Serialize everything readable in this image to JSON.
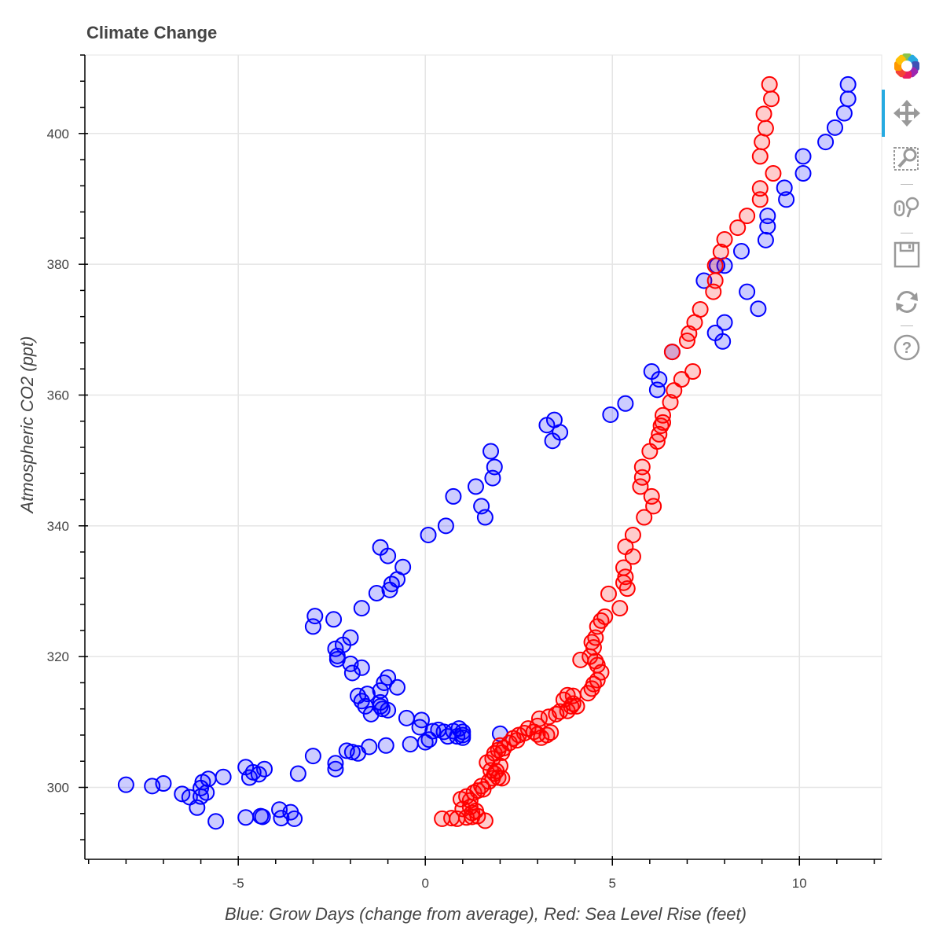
{
  "title": "Climate Change",
  "toolbar": {
    "logo": "bokeh-logo-icon",
    "tools": [
      {
        "name": "pan-tool",
        "icon": "move-arrows-icon",
        "active": true
      },
      {
        "name": "box-zoom-tool",
        "icon": "box-zoom-icon",
        "active": false
      },
      {
        "name": "wheel-zoom-tool",
        "icon": "wheel-zoom-icon",
        "active": false
      },
      {
        "name": "save-tool",
        "icon": "floppy-disk-icon",
        "active": false
      },
      {
        "name": "reset-tool",
        "icon": "reset-arrows-icon",
        "active": false
      },
      {
        "name": "help-tool",
        "icon": "question-mark-icon",
        "active": false
      }
    ],
    "active_color": "#26aae1",
    "icon_color": "#aaaaaa"
  },
  "chart_data": {
    "type": "scatter",
    "title": "Climate Change",
    "xlabel": "Blue: Grow Days (change from average), Red: Sea Level Rise (feet)",
    "ylabel": "Atmospheric CO2 (ppt)",
    "xlim": [
      -9.1,
      12.2
    ],
    "ylim": [
      289,
      412
    ],
    "x_ticks": [
      -5,
      0,
      5,
      10
    ],
    "x_tick_labels": [
      "-5",
      "0",
      "5",
      "10"
    ],
    "y_ticks": [
      300,
      320,
      340,
      360,
      380,
      400
    ],
    "y_tick_labels": [
      "300",
      "320",
      "340",
      "360",
      "380",
      "400"
    ],
    "grid": true,
    "legend": "none",
    "series": [
      {
        "name": "Grow Days",
        "color": "#0000ff",
        "fill": "#0000ff",
        "fill_alpha": 0.2,
        "points": [
          [
            -8.0,
            300.4
          ],
          [
            -7.3,
            300.2
          ],
          [
            -7.0,
            300.6
          ],
          [
            -6.5,
            299.0
          ],
          [
            -6.3,
            298.5
          ],
          [
            -6.1,
            296.9
          ],
          [
            -6.0,
            298.6
          ],
          [
            -6.0,
            299.9
          ],
          [
            -5.95,
            300.8
          ],
          [
            -5.85,
            299.2
          ],
          [
            -5.8,
            301.3
          ],
          [
            -5.6,
            294.8
          ],
          [
            -5.4,
            301.6
          ],
          [
            -4.8,
            303.1
          ],
          [
            -4.7,
            301.5
          ],
          [
            -4.6,
            302.3
          ],
          [
            -4.45,
            302.0
          ],
          [
            -4.3,
            302.8
          ],
          [
            -4.8,
            295.4
          ],
          [
            -4.4,
            295.6
          ],
          [
            -4.35,
            295.5
          ],
          [
            -3.9,
            296.6
          ],
          [
            -3.85,
            295.3
          ],
          [
            -3.6,
            296.2
          ],
          [
            -3.5,
            295.2
          ],
          [
            -3.4,
            302.1
          ],
          [
            -3.0,
            304.8
          ],
          [
            -2.4,
            303.7
          ],
          [
            -2.4,
            302.8
          ],
          [
            -2.1,
            305.6
          ],
          [
            -1.95,
            305.4
          ],
          [
            -1.8,
            305.2
          ],
          [
            -1.5,
            306.2
          ],
          [
            -1.05,
            306.4
          ],
          [
            -0.4,
            306.6
          ],
          [
            0.0,
            306.9
          ],
          [
            0.1,
            307.3
          ],
          [
            -0.5,
            310.6
          ],
          [
            -0.1,
            310.3
          ],
          [
            -0.15,
            309.2
          ],
          [
            0.2,
            308.6
          ],
          [
            0.35,
            308.8
          ],
          [
            0.5,
            308.5
          ],
          [
            0.6,
            307.8
          ],
          [
            0.75,
            308.6
          ],
          [
            0.85,
            307.8
          ],
          [
            1.0,
            308.0
          ],
          [
            1.0,
            308.5
          ],
          [
            0.9,
            309.0
          ],
          [
            1.0,
            307.6
          ],
          [
            2.0,
            308.2
          ],
          [
            -1.8,
            314.0
          ],
          [
            -1.55,
            314.3
          ],
          [
            -1.7,
            313.2
          ],
          [
            -1.6,
            312.4
          ],
          [
            -1.45,
            311.2
          ],
          [
            -1.2,
            312.4
          ],
          [
            -1.15,
            312.0
          ],
          [
            -1.0,
            311.8
          ],
          [
            -1.2,
            313.0
          ],
          [
            -1.1,
            316.0
          ],
          [
            -1.0,
            316.8
          ],
          [
            -1.2,
            314.8
          ],
          [
            -0.75,
            315.3
          ],
          [
            -2.0,
            318.9
          ],
          [
            -1.95,
            317.5
          ],
          [
            -1.7,
            318.3
          ],
          [
            -2.4,
            321.2
          ],
          [
            -2.35,
            320.1
          ],
          [
            -2.35,
            319.6
          ],
          [
            -2.2,
            321.8
          ],
          [
            -2.0,
            322.9
          ],
          [
            -3.0,
            324.6
          ],
          [
            -2.95,
            326.2
          ],
          [
            -2.45,
            325.7
          ],
          [
            -1.7,
            327.4
          ],
          [
            -1.3,
            329.7
          ],
          [
            -0.95,
            330.2
          ],
          [
            -0.9,
            331.1
          ],
          [
            -0.75,
            331.8
          ],
          [
            -0.6,
            333.7
          ],
          [
            -1.2,
            336.7
          ],
          [
            -1.0,
            335.4
          ],
          [
            0.08,
            338.6
          ],
          [
            0.55,
            340.0
          ],
          [
            0.75,
            344.5
          ],
          [
            1.35,
            346.0
          ],
          [
            1.5,
            343.0
          ],
          [
            1.6,
            341.3
          ],
          [
            1.75,
            351.4
          ],
          [
            1.8,
            347.3
          ],
          [
            1.85,
            349.0
          ],
          [
            3.25,
            355.4
          ],
          [
            3.45,
            356.2
          ],
          [
            3.4,
            353.0
          ],
          [
            3.6,
            354.3
          ],
          [
            4.95,
            357.0
          ],
          [
            5.35,
            358.7
          ],
          [
            6.05,
            363.6
          ],
          [
            6.2,
            360.8
          ],
          [
            6.25,
            362.4
          ],
          [
            6.6,
            366.6
          ],
          [
            7.45,
            377.5
          ],
          [
            7.75,
            369.5
          ],
          [
            7.95,
            368.2
          ],
          [
            8.0,
            371.1
          ],
          [
            7.8,
            379.8
          ],
          [
            8.0,
            379.8
          ],
          [
            8.45,
            382.0
          ],
          [
            8.6,
            375.8
          ],
          [
            8.9,
            373.2
          ],
          [
            9.1,
            383.7
          ],
          [
            9.15,
            385.8
          ],
          [
            9.15,
            387.4
          ],
          [
            9.65,
            389.9
          ],
          [
            9.6,
            391.7
          ],
          [
            10.1,
            393.9
          ],
          [
            10.1,
            396.5
          ],
          [
            10.7,
            398.7
          ],
          [
            10.95,
            400.9
          ],
          [
            11.2,
            403.1
          ],
          [
            11.3,
            405.3
          ],
          [
            11.3,
            407.5
          ]
        ]
      },
      {
        "name": "Sea Level Rise",
        "color": "#ff0000",
        "fill": "#ff0000",
        "fill_alpha": 0.2,
        "points": [
          [
            0.45,
            295.2
          ],
          [
            0.7,
            295.3
          ],
          [
            0.85,
            295.2
          ],
          [
            1.1,
            295.4
          ],
          [
            1.25,
            295.5
          ],
          [
            1.4,
            295.6
          ],
          [
            1.6,
            294.9
          ],
          [
            1.0,
            296.7
          ],
          [
            1.2,
            297.0
          ],
          [
            1.25,
            296.1
          ],
          [
            1.35,
            296.4
          ],
          [
            0.95,
            298.2
          ],
          [
            1.1,
            298.6
          ],
          [
            1.3,
            299.2
          ],
          [
            1.4,
            299.5
          ],
          [
            1.5,
            300.2
          ],
          [
            1.55,
            299.7
          ],
          [
            1.2,
            298.0
          ],
          [
            1.7,
            300.9
          ],
          [
            1.8,
            301.4
          ],
          [
            1.85,
            302.1
          ],
          [
            1.95,
            301.5
          ],
          [
            2.05,
            301.4
          ],
          [
            1.75,
            302.6
          ],
          [
            1.9,
            302.5
          ],
          [
            1.65,
            303.8
          ],
          [
            1.8,
            304.4
          ],
          [
            2.0,
            303.3
          ],
          [
            1.85,
            305.2
          ],
          [
            1.95,
            305.7
          ],
          [
            2.05,
            305.3
          ],
          [
            2.1,
            306.0
          ],
          [
            2.0,
            306.4
          ],
          [
            2.25,
            306.8
          ],
          [
            2.35,
            307.5
          ],
          [
            2.45,
            307.2
          ],
          [
            2.5,
            308.0
          ],
          [
            2.65,
            308.3
          ],
          [
            2.75,
            309.0
          ],
          [
            2.9,
            308.5
          ],
          [
            3.0,
            308.1
          ],
          [
            3.0,
            309.4
          ],
          [
            3.1,
            307.6
          ],
          [
            3.25,
            308.0
          ],
          [
            3.35,
            308.4
          ],
          [
            3.05,
            310.5
          ],
          [
            3.3,
            310.8
          ],
          [
            3.5,
            311.2
          ],
          [
            3.6,
            311.6
          ],
          [
            3.8,
            311.7
          ],
          [
            3.9,
            312.4
          ],
          [
            3.95,
            312.8
          ],
          [
            4.05,
            312.4
          ],
          [
            3.7,
            313.4
          ],
          [
            3.8,
            314.1
          ],
          [
            3.95,
            314.0
          ],
          [
            4.35,
            314.4
          ],
          [
            4.45,
            315.1
          ],
          [
            4.5,
            315.8
          ],
          [
            4.6,
            316.4
          ],
          [
            4.7,
            317.6
          ],
          [
            4.15,
            319.5
          ],
          [
            4.4,
            320.0
          ],
          [
            4.55,
            319.3
          ],
          [
            4.6,
            318.7
          ],
          [
            4.5,
            321.4
          ],
          [
            4.45,
            322.2
          ],
          [
            4.55,
            322.9
          ],
          [
            4.6,
            324.6
          ],
          [
            4.7,
            325.5
          ],
          [
            4.8,
            326.1
          ],
          [
            4.9,
            329.6
          ],
          [
            5.2,
            327.4
          ],
          [
            5.3,
            331.3
          ],
          [
            5.35,
            332.2
          ],
          [
            5.4,
            330.4
          ],
          [
            5.3,
            333.6
          ],
          [
            5.55,
            335.3
          ],
          [
            5.35,
            336.8
          ],
          [
            5.55,
            338.6
          ],
          [
            5.85,
            341.3
          ],
          [
            5.75,
            346.0
          ],
          [
            5.8,
            347.4
          ],
          [
            5.8,
            349.0
          ],
          [
            6.0,
            351.4
          ],
          [
            6.1,
            343.0
          ],
          [
            6.05,
            344.5
          ],
          [
            6.2,
            352.9
          ],
          [
            6.25,
            354.0
          ],
          [
            6.3,
            355.3
          ],
          [
            6.35,
            355.8
          ],
          [
            6.35,
            356.9
          ],
          [
            6.55,
            358.9
          ],
          [
            6.65,
            360.7
          ],
          [
            6.85,
            362.4
          ],
          [
            7.15,
            363.6
          ],
          [
            6.6,
            366.6
          ],
          [
            7.0,
            368.3
          ],
          [
            7.05,
            369.4
          ],
          [
            7.2,
            371.1
          ],
          [
            7.35,
            373.1
          ],
          [
            7.7,
            375.8
          ],
          [
            7.75,
            377.5
          ],
          [
            7.75,
            379.8
          ],
          [
            7.9,
            381.9
          ],
          [
            8.0,
            383.8
          ],
          [
            8.35,
            385.6
          ],
          [
            8.6,
            387.4
          ],
          [
            8.95,
            389.9
          ],
          [
            8.95,
            391.6
          ],
          [
            9.3,
            393.9
          ],
          [
            8.95,
            396.5
          ],
          [
            9.0,
            398.7
          ],
          [
            9.1,
            400.8
          ],
          [
            9.05,
            403.0
          ],
          [
            9.25,
            405.3
          ],
          [
            9.2,
            407.5
          ]
        ]
      }
    ]
  }
}
